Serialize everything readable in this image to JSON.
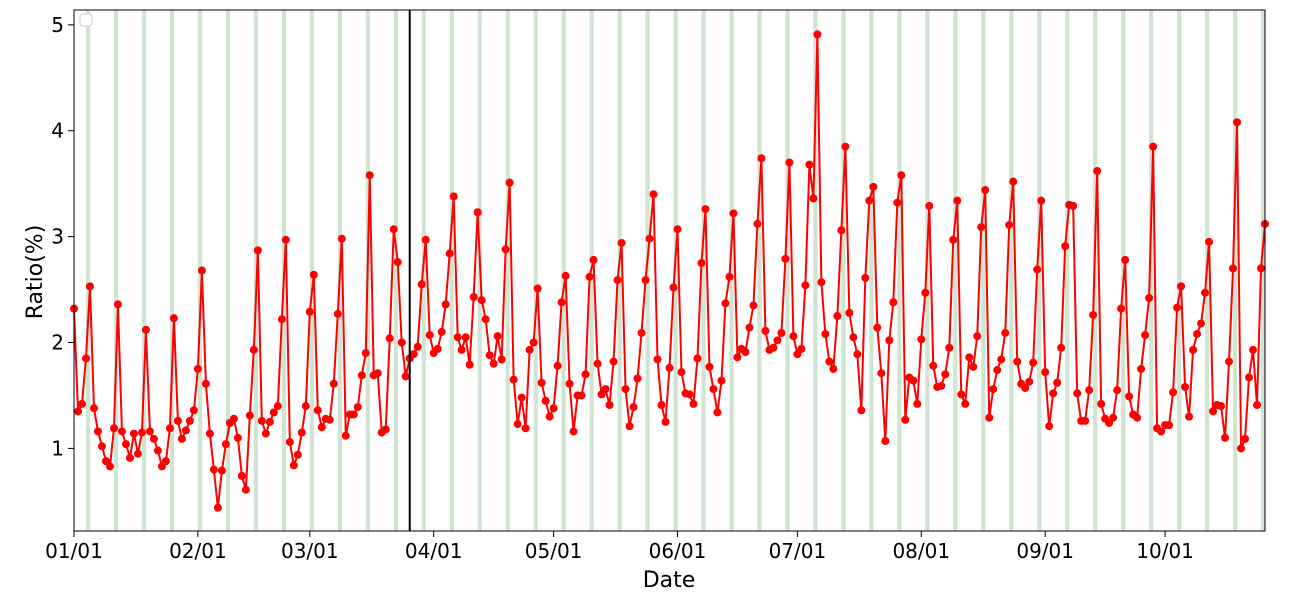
{
  "chart_data": {
    "type": "line",
    "xlabel": "Date",
    "ylabel": "Ratio(%)",
    "ylim": [
      0.22,
      5.14
    ],
    "yticks": [
      1,
      2,
      3,
      4,
      5
    ],
    "ytick_labels": [
      "1",
      "2",
      "3",
      "4",
      "5"
    ],
    "x_start": "01/01",
    "xtick_labels": [
      "01/01",
      "02/01",
      "03/01",
      "04/01",
      "05/01",
      "06/01",
      "07/01",
      "08/01",
      "09/01",
      "10/01"
    ],
    "xtick_day_of_year": [
      1,
      32,
      60,
      91,
      121,
      152,
      182,
      213,
      244,
      274
    ],
    "x_end_day_of_year": 305,
    "vertical_line_day_of_year": 85,
    "series_color": "#ff0000",
    "band_color": "#cfe5cf",
    "band_start_day_of_year": 4,
    "band_period_days": 7,
    "band_width_days": 2,
    "legend": "top-left",
    "grid": false,
    "series": [
      {
        "values": [
          2.32,
          1.35,
          1.42,
          1.85,
          2.53,
          1.38,
          1.16,
          1.02,
          0.88,
          0.83,
          1.19,
          2.36,
          1.16,
          1.04,
          0.91,
          1.14,
          0.95,
          1.15,
          2.12,
          1.16,
          1.09,
          0.98,
          0.83,
          0.88,
          1.19,
          2.23,
          1.26,
          1.09,
          1.17,
          1.26,
          1.36,
          1.75,
          2.68,
          1.61,
          1.14,
          0.8,
          0.44,
          0.79,
          1.04,
          1.24,
          1.28,
          1.1,
          0.74,
          0.61,
          1.31,
          1.93,
          2.87,
          1.26,
          1.14,
          1.25,
          1.34,
          1.4,
          2.22,
          2.97,
          1.06,
          0.84,
          0.94,
          1.15,
          1.4,
          2.29,
          2.64,
          1.36,
          1.2,
          1.28,
          1.27,
          1.61,
          2.27,
          2.98,
          1.12,
          1.32,
          1.32,
          1.39,
          1.69,
          1.9,
          3.58,
          1.69,
          1.71,
          1.15,
          1.18,
          2.04,
          3.07,
          2.76,
          2.0,
          1.68,
          1.85,
          1.89,
          1.96,
          2.55,
          2.97,
          2.07,
          1.9,
          1.94,
          2.1,
          2.36,
          2.84,
          3.38,
          2.05,
          1.93,
          2.05,
          1.79,
          2.43,
          3.23,
          2.4,
          2.22,
          1.88,
          1.8,
          2.06,
          1.84,
          2.88,
          3.51,
          1.65,
          1.23,
          1.48,
          1.19,
          1.93,
          2.0,
          2.51,
          1.62,
          1.45,
          1.3,
          1.38,
          1.78,
          2.38,
          2.63,
          1.61,
          1.16,
          1.5,
          1.5,
          1.7,
          2.62,
          2.78,
          1.8,
          1.51,
          1.56,
          1.41,
          1.82,
          2.59,
          2.94,
          1.56,
          1.21,
          1.39,
          1.66,
          2.09,
          2.59,
          2.98,
          3.4,
          1.84,
          1.41,
          1.25,
          1.76,
          2.52,
          3.07,
          1.72,
          1.52,
          1.51,
          1.42,
          1.85,
          2.75,
          3.26,
          1.77,
          1.56,
          1.34,
          1.64,
          2.37,
          2.62,
          3.22,
          1.86,
          1.94,
          1.91,
          2.14,
          2.35,
          3.12,
          3.74,
          2.11,
          1.93,
          1.95,
          2.02,
          2.09,
          2.79,
          3.7,
          2.06,
          1.89,
          1.94,
          2.54,
          3.68,
          3.36,
          4.91,
          2.57,
          2.08,
          1.82,
          1.75,
          2.25,
          3.06,
          3.85,
          2.28,
          2.05,
          1.89,
          1.36,
          2.61,
          3.34,
          3.47,
          2.14,
          1.71,
          1.07,
          2.02,
          2.38,
          3.32,
          3.58,
          1.27,
          1.67,
          1.64,
          1.42,
          2.03,
          2.47,
          3.29,
          1.78,
          1.58,
          1.59,
          1.7,
          1.95,
          2.97,
          3.34,
          1.51,
          1.42,
          1.86,
          1.77,
          2.06,
          3.09,
          3.44,
          1.29,
          1.56,
          1.74,
          1.84,
          2.09,
          3.11,
          3.52,
          1.82,
          1.61,
          1.57,
          1.63,
          1.81,
          2.69,
          3.34,
          1.72,
          1.21,
          1.52,
          1.62,
          1.95,
          2.91,
          3.3,
          3.29,
          1.52,
          1.26,
          1.26,
          1.55,
          2.26,
          3.62,
          1.42,
          1.28,
          1.24,
          1.29,
          1.55,
          2.32,
          2.78,
          1.49,
          1.32,
          1.29,
          1.75,
          2.07,
          2.42,
          3.85,
          1.19,
          1.16,
          1.22,
          1.22,
          1.53,
          2.33,
          2.53,
          1.58,
          1.3,
          1.93,
          2.08,
          2.18,
          2.47,
          2.95,
          1.35,
          1.41,
          1.4,
          1.1,
          1.82,
          2.7,
          4.08,
          1.0,
          1.09,
          1.67,
          1.93,
          1.41,
          2.7,
          3.12
        ]
      }
    ]
  }
}
